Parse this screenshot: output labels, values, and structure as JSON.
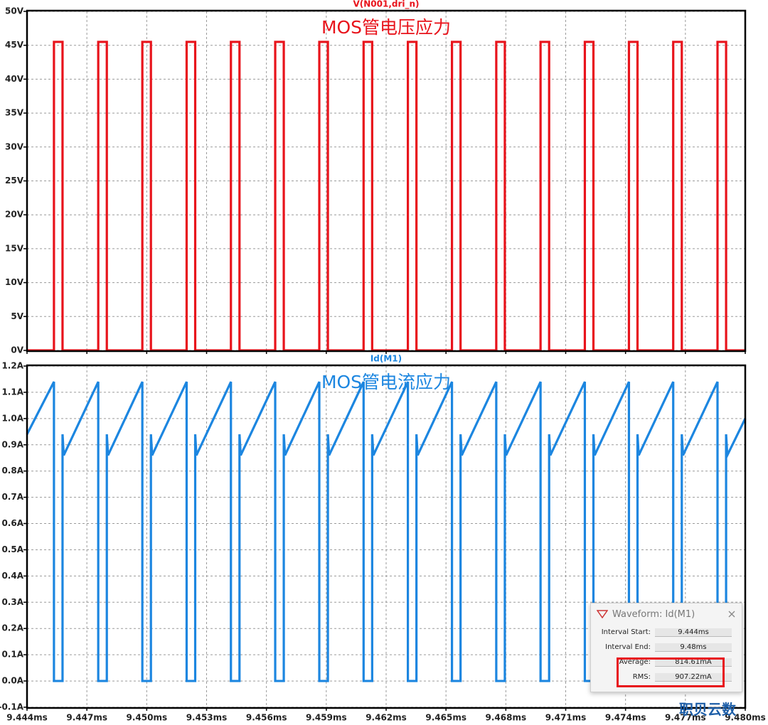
{
  "chart_data": [
    {
      "type": "line",
      "annotation": "MOS管电压应力",
      "x": [
        9.444,
        9.44535,
        9.44535,
        9.44578,
        9.44578,
        9.44757,
        9.44757,
        9.448,
        9.448,
        9.44978,
        9.44978,
        9.45021,
        9.45021,
        9.452,
        9.452,
        9.45243,
        9.45243,
        9.45422,
        9.45422,
        9.45465,
        9.45465,
        9.45644,
        9.45644,
        9.45687,
        9.45687,
        9.45865,
        9.45865,
        9.45908,
        9.45908,
        9.46087,
        9.46087,
        9.4613,
        9.4613,
        9.46309,
        9.46309,
        9.46352,
        9.46352,
        9.4653,
        9.4653,
        9.46573,
        9.46573,
        9.46752,
        9.46752,
        9.46795,
        9.46795,
        9.46974,
        9.46974,
        9.47017,
        9.47017,
        9.47196,
        9.47196,
        9.47239,
        9.47239,
        9.47417,
        9.47417,
        9.4746,
        9.4746,
        9.47639,
        9.47639,
        9.47682,
        9.47682,
        9.47861,
        9.47861,
        9.47904,
        9.47904,
        9.48
      ],
      "series": [
        {
          "name": "V(N001,dri_n)",
          "color": "#e8131b",
          "values": [
            0,
            0,
            45.5,
            45.5,
            0,
            0,
            45.5,
            45.5,
            0,
            0,
            45.5,
            45.5,
            0,
            0,
            45.5,
            45.5,
            0,
            0,
            45.5,
            45.5,
            0,
            0,
            45.5,
            45.5,
            0,
            0,
            45.5,
            45.5,
            0,
            0,
            45.5,
            45.5,
            0,
            0,
            45.5,
            45.5,
            0,
            0,
            45.5,
            45.5,
            0,
            0,
            45.5,
            45.5,
            0,
            0,
            45.5,
            45.5,
            0,
            0,
            45.5,
            45.5,
            0,
            0,
            45.5,
            45.5,
            0,
            0,
            45.5,
            45.5,
            0,
            0,
            45.5,
            45.5,
            0,
            0
          ]
        }
      ],
      "xlim": [
        9.444,
        9.48
      ],
      "ylim": [
        0,
        50
      ],
      "yticks": [
        {
          "value": 0,
          "label": "0V"
        },
        {
          "value": 5,
          "label": "5V"
        },
        {
          "value": 10,
          "label": "10V"
        },
        {
          "value": 15,
          "label": "15V"
        },
        {
          "value": 20,
          "label": "20V"
        },
        {
          "value": 25,
          "label": "25V"
        },
        {
          "value": 30,
          "label": "30V"
        },
        {
          "value": 35,
          "label": "35V"
        },
        {
          "value": 40,
          "label": "40V"
        },
        {
          "value": 45,
          "label": "45V"
        },
        {
          "value": 50,
          "label": "50V"
        }
      ],
      "grid": true
    },
    {
      "type": "line",
      "annotation": "MOS管电流应力",
      "x": [
        9.444,
        9.44535,
        9.44535,
        9.44578,
        9.44578,
        9.44584,
        9.44757,
        9.44757,
        9.448,
        9.448,
        9.44806,
        9.44978,
        9.44978,
        9.45021,
        9.45021,
        9.45027,
        9.452,
        9.452,
        9.45243,
        9.45243,
        9.45249,
        9.45422,
        9.45422,
        9.45465,
        9.45465,
        9.45471,
        9.45644,
        9.45644,
        9.45687,
        9.45687,
        9.45693,
        9.45865,
        9.45865,
        9.45908,
        9.45908,
        9.45914,
        9.46087,
        9.46087,
        9.4613,
        9.4613,
        9.46136,
        9.46309,
        9.46309,
        9.46352,
        9.46352,
        9.46358,
        9.4653,
        9.4653,
        9.46573,
        9.46573,
        9.46579,
        9.46752,
        9.46752,
        9.46795,
        9.46795,
        9.46801,
        9.46974,
        9.46974,
        9.47017,
        9.47017,
        9.47023,
        9.47196,
        9.47196,
        9.47239,
        9.47239,
        9.47245,
        9.47417,
        9.47417,
        9.4746,
        9.4746,
        9.47466,
        9.47639,
        9.47639,
        9.47682,
        9.47682,
        9.47688,
        9.47861,
        9.47861,
        9.47904,
        9.47904,
        9.4791,
        9.48
      ],
      "series": [
        {
          "name": "Id(M1)",
          "color": "#1c86e0",
          "values": [
            0.94,
            1.14,
            0,
            0,
            0.94,
            0.86,
            1.14,
            0,
            0,
            0.94,
            0.86,
            1.14,
            0,
            0,
            0.94,
            0.86,
            1.14,
            0,
            0,
            0.94,
            0.86,
            1.14,
            0,
            0,
            0.94,
            0.86,
            1.14,
            0,
            0,
            0.94,
            0.86,
            1.14,
            0,
            0,
            0.94,
            0.86,
            1.14,
            0,
            0,
            0.94,
            0.86,
            1.14,
            0,
            0,
            0.94,
            0.86,
            1.14,
            0,
            0,
            0.94,
            0.86,
            1.14,
            0,
            0,
            0.94,
            0.86,
            1.14,
            0,
            0,
            0.94,
            0.86,
            1.14,
            0,
            0,
            0.94,
            0.86,
            1.14,
            0,
            0,
            0.94,
            0.86,
            1.14,
            0,
            0,
            0.94,
            0.86,
            1.14,
            0,
            0,
            0.94,
            0.86,
            1.0
          ]
        }
      ],
      "xlim": [
        9.444,
        9.48
      ],
      "xticks": [
        {
          "value": 9.444,
          "label": "9.444ms"
        },
        {
          "value": 9.447,
          "label": "9.447ms"
        },
        {
          "value": 9.45,
          "label": "9.450ms"
        },
        {
          "value": 9.453,
          "label": "9.453ms"
        },
        {
          "value": 9.456,
          "label": "9.456ms"
        },
        {
          "value": 9.459,
          "label": "9.459ms"
        },
        {
          "value": 9.462,
          "label": "9.462ms"
        },
        {
          "value": 9.465,
          "label": "9.465ms"
        },
        {
          "value": 9.468,
          "label": "9.468ms"
        },
        {
          "value": 9.471,
          "label": "9.471ms"
        },
        {
          "value": 9.474,
          "label": "9.474ms"
        },
        {
          "value": 9.477,
          "label": "9.477ms"
        },
        {
          "value": 9.48,
          "label": "9.480ms"
        }
      ],
      "ylim": [
        -0.1,
        1.2
      ],
      "yticks": [
        {
          "value": -0.1,
          "label": "-0.1A"
        },
        {
          "value": 0,
          "label": "0.0A"
        },
        {
          "value": 0.1,
          "label": "0.1A"
        },
        {
          "value": 0.2,
          "label": "0.2A"
        },
        {
          "value": 0.3,
          "label": "0.3A"
        },
        {
          "value": 0.4,
          "label": "0.4A"
        },
        {
          "value": 0.5,
          "label": "0.5A"
        },
        {
          "value": 0.6,
          "label": "0.6A"
        },
        {
          "value": 0.7,
          "label": "0.7A"
        },
        {
          "value": 0.8,
          "label": "0.8A"
        },
        {
          "value": 0.9,
          "label": "0.9A"
        },
        {
          "value": 1.0,
          "label": "1.0A"
        },
        {
          "value": 1.1,
          "label": "1.1A"
        },
        {
          "value": 1.2,
          "label": "1.2A"
        }
      ],
      "grid": true
    }
  ],
  "dialog": {
    "title": "Waveform: Id(M1)",
    "rows": [
      [
        "Interval Start:",
        "9.444ms"
      ],
      [
        "Interval End:",
        "9.48ms"
      ],
      [
        "Average:",
        "814.61mA"
      ],
      [
        "RMS:",
        "907.22mA"
      ]
    ]
  },
  "watermark": "职贝云数"
}
